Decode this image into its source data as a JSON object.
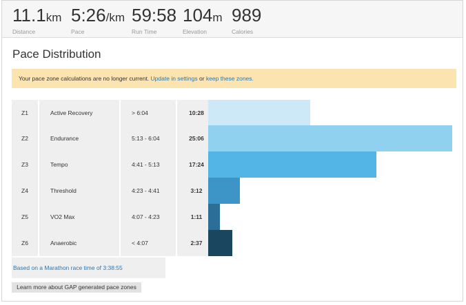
{
  "stats": [
    {
      "value": "11.1",
      "unit": "km",
      "label": "Distance"
    },
    {
      "value": "5:26",
      "unit": "/km",
      "label": "Pace"
    },
    {
      "value": "59:58",
      "unit": "",
      "label": "Run Time"
    },
    {
      "value": "104",
      "unit": "m",
      "label": "Elevation"
    },
    {
      "value": "989",
      "unit": "",
      "label": "Calories"
    }
  ],
  "section_title": "Pace Distribution",
  "alert": {
    "text": "Your pace zone calculations are no longer current.",
    "link1": "Update in settings",
    "or": "or",
    "link2": "keep these zones."
  },
  "zones": [
    {
      "zone": "Z1",
      "name": "Active Recovery",
      "range": "> 6:04",
      "time": "10:28",
      "color": "#cde9f7"
    },
    {
      "zone": "Z2",
      "name": "Endurance",
      "range": "5:13 - 6:04",
      "time": "25:06",
      "color": "#8fd1ef"
    },
    {
      "zone": "Z3",
      "name": "Tempo",
      "range": "4:41 - 5:13",
      "time": "17:24",
      "color": "#53b5e6"
    },
    {
      "zone": "Z4",
      "name": "Threshold",
      "range": "4:23 - 4:41",
      "time": "3:12",
      "color": "#3c95c6"
    },
    {
      "zone": "Z5",
      "name": "VO2 Max",
      "range": "4:07 - 4:23",
      "time": "1:11",
      "color": "#2b6f98"
    },
    {
      "zone": "Z6",
      "name": "Anaerobic",
      "range": "< 4:07",
      "time": "2:37",
      "color": "#1b4660"
    }
  ],
  "footnote": "Based on a Marathon race time of 3:38:55",
  "learn_more_label": "Learn more about GAP generated pace zones"
}
